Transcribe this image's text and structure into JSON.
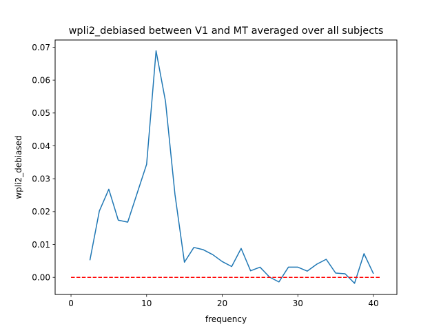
{
  "chart_data": {
    "type": "line",
    "title": "wpli2_debiased between V1 and MT averaged over all subjects",
    "xlabel": "frequency",
    "ylabel": "wpli2_debiased",
    "xlim": [
      -2.1,
      43.1
    ],
    "ylim": [
      -0.0052,
      0.0722
    ],
    "xticks": [
      0,
      10,
      20,
      30,
      40
    ],
    "xtick_labels": [
      "0",
      "10",
      "20",
      "30",
      "40"
    ],
    "yticks": [
      0.0,
      0.01,
      0.02,
      0.03,
      0.04,
      0.05,
      0.06,
      0.07
    ],
    "ytick_labels": [
      "0.00",
      "0.01",
      "0.02",
      "0.03",
      "0.04",
      "0.05",
      "0.06",
      "0.07"
    ],
    "grid": false,
    "series": [
      {
        "style": "solid",
        "color": "#1f77b4",
        "x": [
          2.5,
          3.75,
          5.0,
          6.25,
          7.5,
          8.75,
          10.0,
          11.25,
          12.5,
          13.75,
          15.0,
          16.25,
          17.5,
          18.75,
          20.0,
          21.25,
          22.5,
          23.75,
          25.0,
          26.25,
          27.5,
          28.75,
          30.0,
          31.25,
          32.5,
          33.75,
          35.0,
          36.25,
          37.5,
          38.75,
          40.0
        ],
        "values": [
          0.0052,
          0.0202,
          0.0268,
          0.0174,
          0.0168,
          0.0256,
          0.0344,
          0.0689,
          0.0535,
          0.0252,
          0.0046,
          0.0091,
          0.0084,
          0.0069,
          0.0048,
          0.0033,
          0.0088,
          0.002,
          0.0031,
          0.0001,
          -0.0014,
          0.0031,
          0.0031,
          0.0019,
          0.004,
          0.0055,
          0.0013,
          0.0011,
          -0.0018,
          0.0072,
          0.0011
        ]
      },
      {
        "style": "dashed",
        "color": "#ff0000",
        "x": [
          0,
          41
        ],
        "values": [
          0.0,
          0.0
        ]
      }
    ]
  }
}
